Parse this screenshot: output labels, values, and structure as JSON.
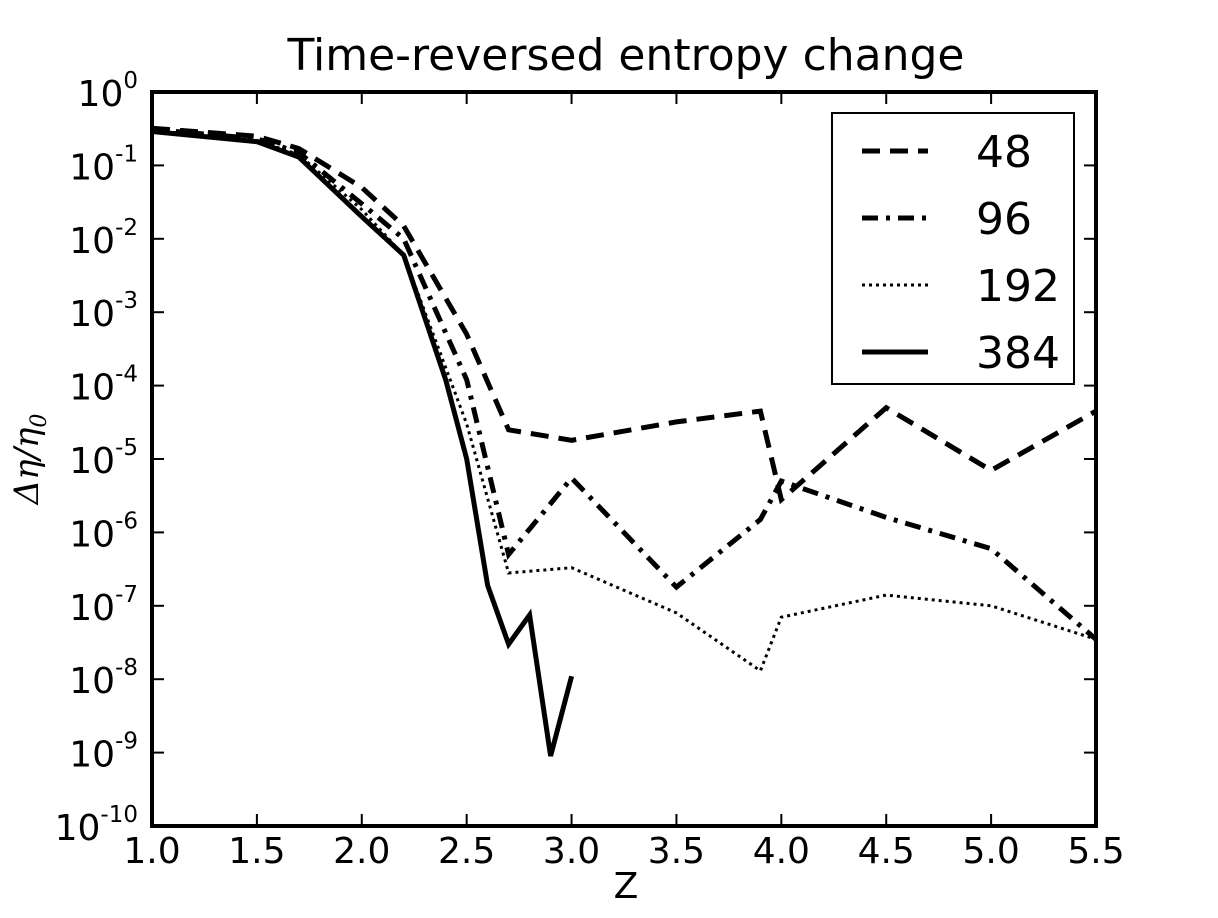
{
  "chart_data": {
    "type": "line",
    "title": "Time-reversed entropy change",
    "xlabel": "Z",
    "ylabel_main": "Δη/η",
    "ylabel_sub": "0",
    "xlim": [
      1.0,
      5.5
    ],
    "ylim": [
      1e-10,
      1
    ],
    "yscale": "log",
    "grid": false,
    "legend_placement": "top-right",
    "x_ticks": [
      "1.0",
      "1.5",
      "2.0",
      "2.5",
      "3.0",
      "3.5",
      "4.0",
      "4.5",
      "5.0",
      "5.5"
    ],
    "y_ticks": [
      {
        "base": "10",
        "exp": "0",
        "value": 0
      },
      {
        "base": "10",
        "exp": "-1",
        "value": -1
      },
      {
        "base": "10",
        "exp": "-2",
        "value": -2
      },
      {
        "base": "10",
        "exp": "-3",
        "value": -3
      },
      {
        "base": "10",
        "exp": "-4",
        "value": -4
      },
      {
        "base": "10",
        "exp": "-5",
        "value": -5
      },
      {
        "base": "10",
        "exp": "-6",
        "value": -6
      },
      {
        "base": "10",
        "exp": "-7",
        "value": -7
      },
      {
        "base": "10",
        "exp": "-8",
        "value": -8
      },
      {
        "base": "10",
        "exp": "-9",
        "value": -9
      },
      {
        "base": "10",
        "exp": "-10",
        "value": -10
      }
    ],
    "series": [
      {
        "name": "48",
        "style": "dashed",
        "x": [
          1.0,
          1.5,
          1.7,
          2.0,
          2.2,
          2.5,
          2.7,
          3.0,
          3.5,
          3.9,
          4.0,
          4.5,
          5.0,
          5.5
        ],
        "y": [
          0.32,
          0.25,
          0.17,
          0.05,
          0.015,
          0.0005,
          2.5e-05,
          1.8e-05,
          3.2e-05,
          4.5e-05,
          2.8e-06,
          5e-05,
          7e-06,
          4.5e-05
        ]
      },
      {
        "name": "96",
        "style": "dashdot",
        "x": [
          1.0,
          1.5,
          1.7,
          2.0,
          2.2,
          2.5,
          2.7,
          3.0,
          3.5,
          3.9,
          4.0,
          4.5,
          5.0,
          5.5
        ],
        "y": [
          0.31,
          0.23,
          0.15,
          0.03,
          0.01,
          0.00012,
          5e-07,
          5.5e-06,
          1.8e-07,
          1.5e-06,
          5e-06,
          1.6e-06,
          6e-07,
          3.5e-08
        ]
      },
      {
        "name": "192",
        "style": "dotted",
        "x": [
          1.0,
          1.5,
          1.7,
          2.0,
          2.2,
          2.5,
          2.7,
          3.0,
          3.5,
          3.9,
          4.0,
          4.5,
          5.0,
          5.5
        ],
        "y": [
          0.3,
          0.22,
          0.14,
          0.025,
          0.006,
          3e-05,
          2.8e-07,
          3.3e-07,
          8e-08,
          1.3e-08,
          7e-08,
          1.4e-07,
          1e-07,
          3.5e-08
        ]
      },
      {
        "name": "384",
        "style": "solid",
        "x": [
          1.0,
          1.5,
          1.7,
          2.0,
          2.2,
          2.4,
          2.5,
          2.6,
          2.7,
          2.8,
          2.9,
          3.0
        ],
        "y": [
          0.29,
          0.21,
          0.13,
          0.02,
          0.006,
          0.00012,
          1e-05,
          1.9e-07,
          3e-08,
          7.5e-08,
          9e-10,
          1.1e-08
        ]
      }
    ]
  }
}
